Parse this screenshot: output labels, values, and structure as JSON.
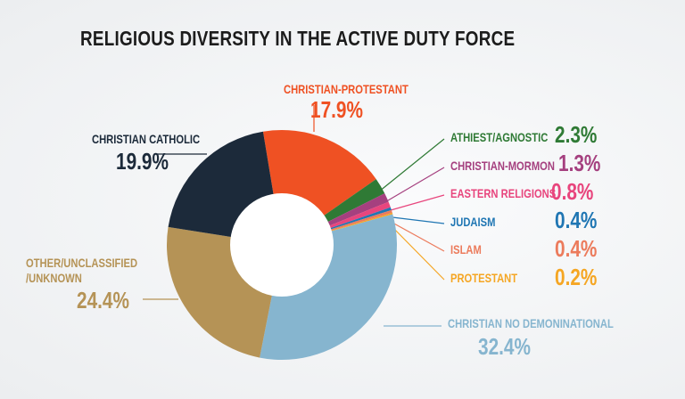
{
  "chart_data": {
    "type": "pie",
    "subtype": "donut",
    "title": "RELIGIOUS DIVERSITY IN THE ACTIVE DUTY FORCE",
    "slices": [
      {
        "label": "CHRISTIAN-PROTESTANT",
        "value": 17.9,
        "display": "17.9%",
        "color": "#ef5123"
      },
      {
        "label": "ATHIEST/AGNOSTIC",
        "value": 2.3,
        "display": "2.3%",
        "color": "#2f7a35"
      },
      {
        "label": "CHRISTIAN-MORMON",
        "value": 1.3,
        "display": "1.3%",
        "color": "#a5407f"
      },
      {
        "label": "EASTERN RELIGIONS",
        "value": 0.8,
        "display": "0.8%",
        "color": "#e8457d"
      },
      {
        "label": "JUDAISM",
        "value": 0.4,
        "display": "0.4%",
        "color": "#1f76b3"
      },
      {
        "label": "ISLAM",
        "value": 0.4,
        "display": "0.4%",
        "color": "#ec7b5c"
      },
      {
        "label": "PROTESTANT",
        "value": 0.2,
        "display": "0.2%",
        "color": "#f5a623"
      },
      {
        "label": "CHRISTIAN NO DEMONINATIONAL",
        "value": 32.4,
        "display": "32.4%",
        "color": "#86b5cf"
      },
      {
        "label": "OTHER/UNCLASSIFIED /UNKNOWN",
        "value": 24.4,
        "display": "24.4%",
        "color": "#b59356"
      },
      {
        "label": "CHRISTIAN CATHOLIC",
        "value": 19.9,
        "display": "19.9%",
        "color": "#1c2a3a"
      }
    ]
  }
}
